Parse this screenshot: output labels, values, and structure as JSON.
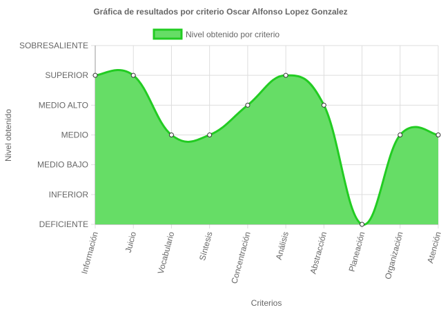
{
  "chart_data": {
    "type": "area",
    "title": "Gráfica de resultados por criterio Oscar Alfonso Lopez Gonzalez",
    "xlabel": "Criterios",
    "ylabel": "Nivel obtenido",
    "categories": [
      "Información",
      "Juicio",
      "Vocabulario",
      "Síntesis",
      "Concentración",
      "Análisis",
      "Abstracción",
      "Planeación",
      "Organización",
      "Atención"
    ],
    "y_levels": [
      "DEFICIENTE",
      "INFERIOR",
      "MEDIO BAJO",
      "MEDIO",
      "MEDIO ALTO",
      "SUPERIOR",
      "SOBRESALIENTE"
    ],
    "ylim": [
      0,
      6
    ],
    "series": [
      {
        "name": "Nivel obtenido por criterio",
        "values": [
          5,
          5,
          3,
          3,
          4,
          5,
          4,
          0,
          3,
          3
        ]
      }
    ],
    "legend": "top-center",
    "grid": true,
    "colors": {
      "fill": "#66dd66",
      "line": "#22cc22",
      "point_fill": "#ffffff",
      "point_stroke": "#333333",
      "grid": "#dddddd",
      "axis": "#999999"
    }
  }
}
